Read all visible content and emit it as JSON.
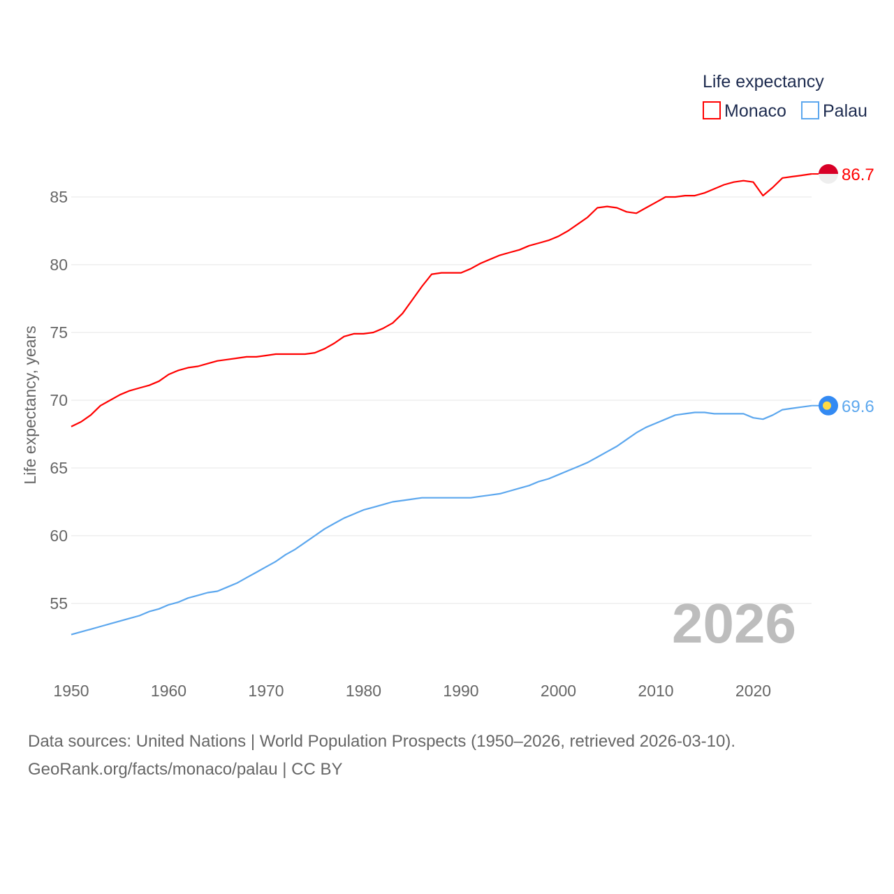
{
  "chart_data": {
    "type": "line",
    "title": "Life expectancy",
    "xlabel": "",
    "ylabel": "Life expectancy, years",
    "xlim": [
      1950,
      2026
    ],
    "ylim": [
      51.5,
      88
    ],
    "x_ticks": [
      "1950",
      "1960",
      "1970",
      "1980",
      "1990",
      "2000",
      "2010",
      "2020"
    ],
    "y_ticks": [
      "55",
      "60",
      "65",
      "70",
      "75",
      "80",
      "85"
    ],
    "grid": true,
    "legend_position": "top-right",
    "year_watermark": "2026",
    "x": [
      1950,
      1951,
      1952,
      1953,
      1954,
      1955,
      1956,
      1957,
      1958,
      1959,
      1960,
      1961,
      1962,
      1963,
      1964,
      1965,
      1966,
      1967,
      1968,
      1969,
      1970,
      1971,
      1972,
      1973,
      1974,
      1975,
      1976,
      1977,
      1978,
      1979,
      1980,
      1981,
      1982,
      1983,
      1984,
      1985,
      1986,
      1987,
      1988,
      1989,
      1990,
      1991,
      1992,
      1993,
      1994,
      1995,
      1996,
      1997,
      1998,
      1999,
      2000,
      2001,
      2002,
      2003,
      2004,
      2005,
      2006,
      2007,
      2008,
      2009,
      2010,
      2011,
      2012,
      2013,
      2014,
      2015,
      2016,
      2017,
      2018,
      2019,
      2020,
      2021,
      2022,
      2023,
      2024,
      2025,
      2026
    ],
    "series": [
      {
        "name": "Monaco",
        "color": "#ff0000",
        "end_label": "86.7",
        "values": [
          68.05,
          68.4,
          68.9,
          69.6,
          70.0,
          70.4,
          70.7,
          70.9,
          71.1,
          71.4,
          71.9,
          72.2,
          72.4,
          72.5,
          72.7,
          72.9,
          73.0,
          73.1,
          73.2,
          73.2,
          73.3,
          73.4,
          73.4,
          73.4,
          73.4,
          73.5,
          73.8,
          74.2,
          74.7,
          74.9,
          74.9,
          75.0,
          75.3,
          75.7,
          76.4,
          77.4,
          78.4,
          79.3,
          79.4,
          79.4,
          79.4,
          79.7,
          80.1,
          80.4,
          80.7,
          80.9,
          81.1,
          81.4,
          81.6,
          81.8,
          82.1,
          82.5,
          83.0,
          83.5,
          84.2,
          84.3,
          84.2,
          83.9,
          83.8,
          84.2,
          84.6,
          85.0,
          85.0,
          85.1,
          85.1,
          85.3,
          85.6,
          85.9,
          86.1,
          86.2,
          86.1,
          85.1,
          85.7,
          86.4,
          86.5,
          86.6,
          86.7
        ]
      },
      {
        "name": "Palau",
        "color": "#5ca7ee",
        "end_label": "69.6",
        "values": [
          52.7,
          52.9,
          53.1,
          53.3,
          53.5,
          53.7,
          53.9,
          54.1,
          54.4,
          54.6,
          54.9,
          55.1,
          55.4,
          55.6,
          55.8,
          55.9,
          56.2,
          56.5,
          56.9,
          57.3,
          57.7,
          58.1,
          58.6,
          59.0,
          59.5,
          60.0,
          60.5,
          60.9,
          61.3,
          61.6,
          61.9,
          62.1,
          62.3,
          62.5,
          62.6,
          62.7,
          62.8,
          62.8,
          62.8,
          62.8,
          62.8,
          62.8,
          62.9,
          63.0,
          63.1,
          63.3,
          63.5,
          63.7,
          64.0,
          64.2,
          64.5,
          64.8,
          65.1,
          65.4,
          65.8,
          66.2,
          66.6,
          67.1,
          67.6,
          68.0,
          68.3,
          68.6,
          68.9,
          69.0,
          69.1,
          69.1,
          69.0,
          69.0,
          69.0,
          69.0,
          68.7,
          68.6,
          68.9,
          69.3,
          69.4,
          69.5,
          69.6
        ]
      }
    ]
  },
  "source": {
    "line1": "Data sources: United Nations | World Population Prospects (1950–2026, retrieved 2026-03-10).",
    "line2": "GeoRank.org/facts/monaco/palau | CC BY"
  },
  "flags": {
    "monaco_top": "#d80027",
    "monaco_bottom": "#eeeeee",
    "palau_bg": "#338af3",
    "palau_dot": "#ffda44"
  }
}
